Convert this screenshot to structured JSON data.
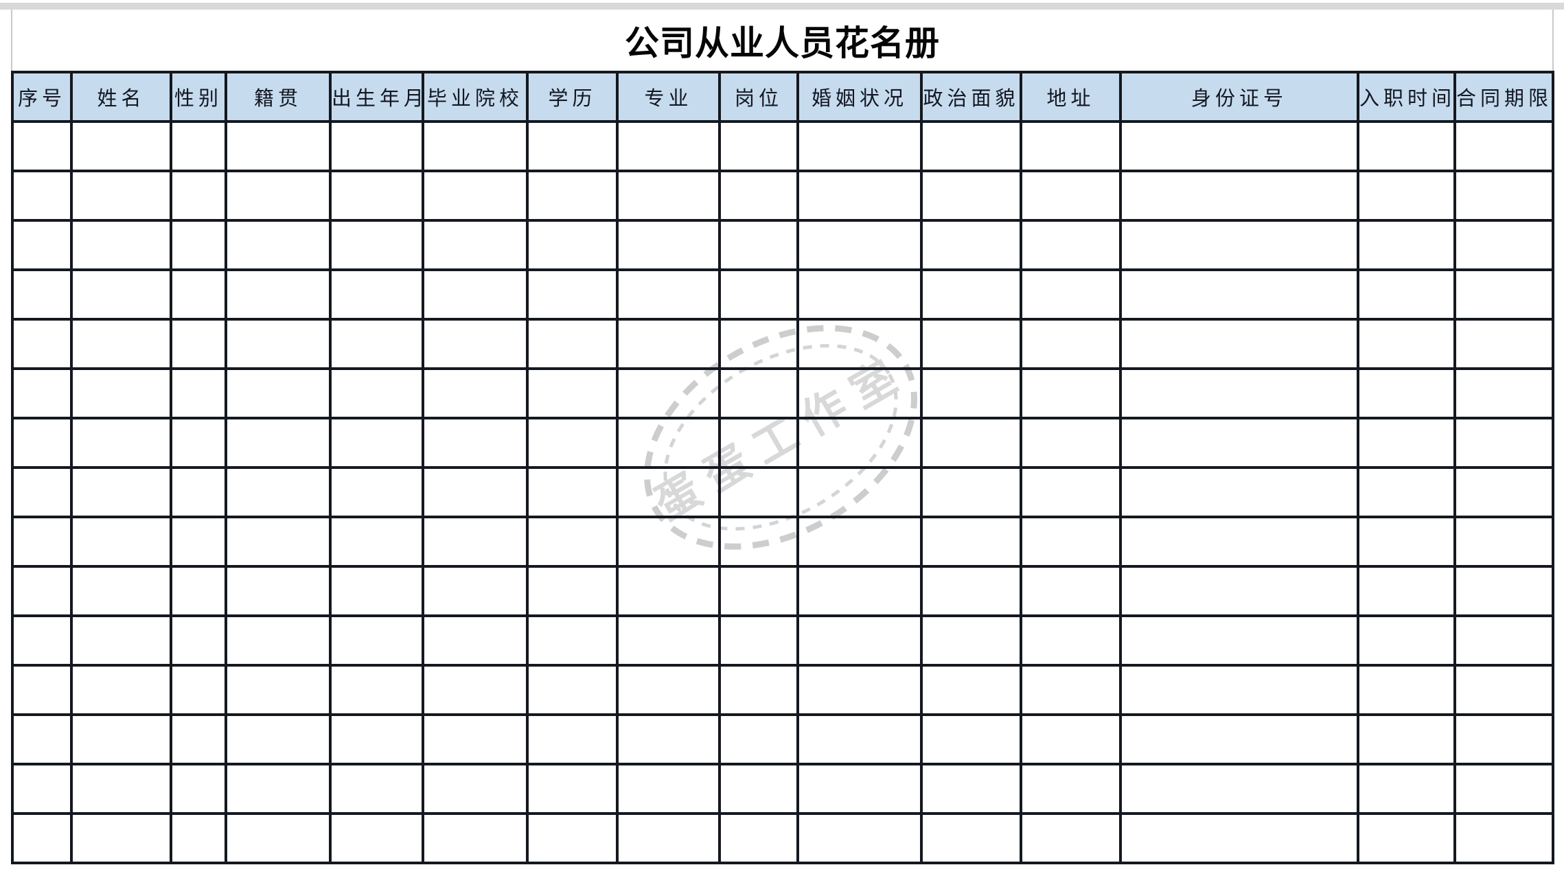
{
  "title": {
    "text": "公司从业人员花名册"
  },
  "table": {
    "columns": [
      {
        "key": "serial-number",
        "label": "序号"
      },
      {
        "key": "name",
        "label": "姓名"
      },
      {
        "key": "gender",
        "label": "性别"
      },
      {
        "key": "native-place",
        "label": "籍贯"
      },
      {
        "key": "birth-date",
        "label": "出生年月"
      },
      {
        "key": "graduate-school",
        "label": "毕业院校"
      },
      {
        "key": "education",
        "label": "学历"
      },
      {
        "key": "major",
        "label": "专业"
      },
      {
        "key": "position",
        "label": "岗位"
      },
      {
        "key": "marital-status",
        "label": "婚姻状况"
      },
      {
        "key": "political-status",
        "label": "政治面貌"
      },
      {
        "key": "address",
        "label": "地址"
      },
      {
        "key": "id-number",
        "label": "身份证号"
      },
      {
        "key": "hire-date",
        "label": "入职时间"
      },
      {
        "key": "contract-term",
        "label": "合同期限"
      }
    ],
    "empty_row_count": 15,
    "cell_value": ""
  },
  "watermark": {
    "text": "蛋蛋工作室"
  },
  "colors": {
    "header_bg": "#c7dbee",
    "grid_border": "#14181f",
    "top_strip": "#d9d9d9",
    "title_box_border": "#c9c9c9",
    "watermark_text": "#d8d8d8",
    "watermark_ring": "#cdcdcd"
  }
}
